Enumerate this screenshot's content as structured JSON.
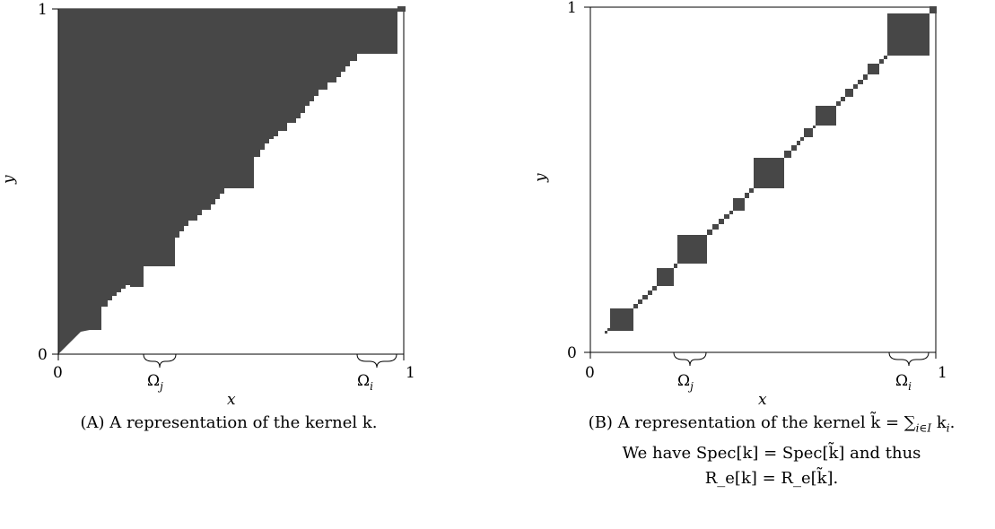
{
  "panels": {
    "a": {
      "x_label": "x",
      "y_label": "y",
      "x_ticks": [
        "0",
        "1"
      ],
      "y_ticks": [
        "0",
        "1"
      ],
      "braces": [
        "Ω",
        "Ω"
      ],
      "brace_subs": [
        "j",
        "i"
      ],
      "caption": "(A) A representation of the kernel k."
    },
    "b": {
      "x_label": "x",
      "y_label": "y",
      "x_ticks": [
        "0",
        "1"
      ],
      "y_ticks": [
        "0",
        "1"
      ],
      "braces": [
        "Ω",
        "Ω"
      ],
      "brace_subs": [
        "j",
        "i"
      ],
      "caption_lines": [
        "(B) A representation of the kernel k̃ = ∑",
        "We have Spec[k] = Spec[k̃] and thus",
        "R_e[k] = R_e[k̃]."
      ]
    }
  },
  "colors": {
    "fill": "#474747",
    "axis": "#000000"
  }
}
